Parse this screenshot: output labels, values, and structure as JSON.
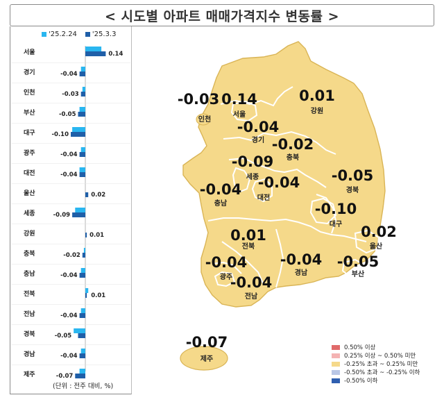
{
  "title": "< 시도별 아파트 매매가격지수 변동률 >",
  "legend": {
    "series1": "'25.2.24",
    "series2": "'25.3.3",
    "color1": "#29b6f0",
    "color2": "#1f5fa8"
  },
  "unit_note": "(단위 : 전주 대비, %)",
  "chart_data": {
    "type": "bar",
    "orientation": "horizontal",
    "categories": [
      "서울",
      "경기",
      "인천",
      "부산",
      "대구",
      "광주",
      "대전",
      "울산",
      "세종",
      "강원",
      "충북",
      "충남",
      "전북",
      "전남",
      "경북",
      "경남",
      "제주"
    ],
    "series": [
      {
        "name": "'25.2.24",
        "values": [
          0.11,
          -0.03,
          -0.02,
          -0.04,
          -0.09,
          -0.03,
          -0.04,
          0.0,
          -0.07,
          0.0,
          -0.01,
          -0.03,
          0.02,
          -0.03,
          -0.08,
          -0.03,
          -0.04
        ]
      },
      {
        "name": "'25.3.3",
        "values": [
          0.14,
          -0.04,
          -0.03,
          -0.05,
          -0.1,
          -0.04,
          -0.04,
          0.02,
          -0.09,
          0.01,
          -0.02,
          -0.04,
          0.01,
          -0.04,
          -0.05,
          -0.04,
          -0.07
        ]
      }
    ],
    "data_labels": [
      "0.14",
      "-0.04",
      "-0.03",
      "-0.05",
      "-0.10",
      "-0.04",
      "-0.04",
      "0.02",
      "-0.09",
      "0.01",
      "-0.02",
      "-0.04",
      "0.01",
      "-0.04",
      "-0.05",
      "-0.04",
      "-0.07"
    ]
  },
  "map": {
    "regions": [
      {
        "name": "인천",
        "value": "-0.03"
      },
      {
        "name": "서울",
        "value": "0.14"
      },
      {
        "name": "강원",
        "value": "0.01"
      },
      {
        "name": "경기",
        "value": "-0.04"
      },
      {
        "name": "충북",
        "value": "-0.02"
      },
      {
        "name": "세종",
        "value": "-0.09"
      },
      {
        "name": "대전",
        "value": "-0.04"
      },
      {
        "name": "충남",
        "value": "-0.04"
      },
      {
        "name": "경북",
        "value": "-0.05"
      },
      {
        "name": "대구",
        "value": "-0.10"
      },
      {
        "name": "전북",
        "value": "0.01"
      },
      {
        "name": "울산",
        "value": "0.02"
      },
      {
        "name": "광주",
        "value": "-0.04"
      },
      {
        "name": "경남",
        "value": "-0.04"
      },
      {
        "name": "부산",
        "value": "-0.05"
      },
      {
        "name": "전남",
        "value": "-0.04"
      },
      {
        "name": "제주",
        "value": "-0.07"
      }
    ],
    "fill_color": "#f5d98a",
    "border_color": "#ffffff"
  },
  "map_legend": [
    {
      "label": "0.50% 이상",
      "color": "#e06a6a"
    },
    {
      "label": "0.25% 이상 ~ 0.50% 미만",
      "color": "#f4b3b3"
    },
    {
      "label": "-0.25% 초과 ~ 0.25% 미만",
      "color": "#f5d98a"
    },
    {
      "label": "-0.50% 초과 ~ -0.25% 이하",
      "color": "#b9c7e6"
    },
    {
      "label": "-0.50% 이하",
      "color": "#2f5fb0"
    }
  ]
}
